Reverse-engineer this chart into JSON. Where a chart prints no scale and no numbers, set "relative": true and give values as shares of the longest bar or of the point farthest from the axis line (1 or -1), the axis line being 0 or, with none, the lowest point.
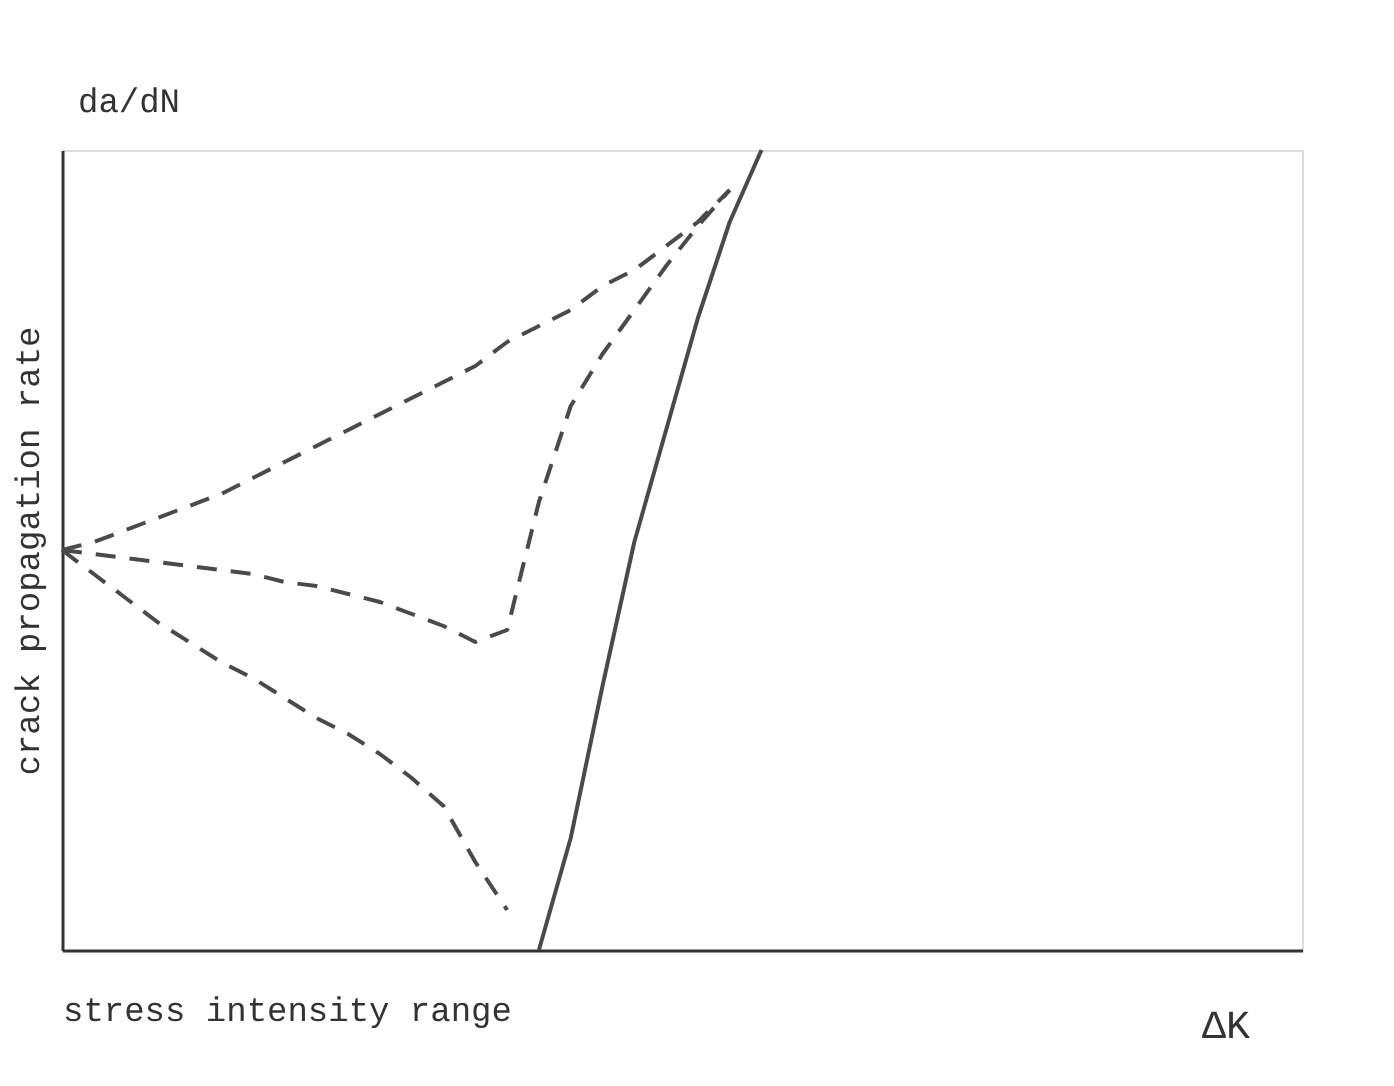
{
  "chart_data": {
    "type": "line",
    "relative": true,
    "xlabel": "stress intensity range",
    "ylabel": "crack propagation rate",
    "annotations": [
      "da/dN",
      "ΔK"
    ],
    "categories": [
      null,
      null,
      null,
      null,
      null,
      null,
      null,
      null,
      null,
      null,
      null,
      null,
      null,
      null,
      null,
      null,
      null,
      null,
      null,
      null,
      null,
      null,
      null,
      null,
      null,
      null,
      null,
      null,
      null,
      null,
      null,
      null,
      null,
      null,
      null,
      null,
      null,
      null,
      null,
      null
    ],
    "tick_labels": false,
    "grid": false,
    "marker": "none",
    "series": [
      {
        "color": "#4a4a4a",
        "line_style": "solid",
        "values": [
          null,
          null,
          null,
          null,
          null,
          null,
          null,
          null,
          null,
          null,
          null,
          null,
          null,
          null,
          null,
          0,
          0.14,
          0.33,
          0.51,
          0.65,
          0.79,
          0.91,
          1.0,
          null,
          null,
          null,
          null,
          null,
          null,
          null,
          null,
          null,
          null,
          null,
          null,
          null,
          null,
          null,
          null,
          null
        ]
      },
      {
        "color": "#4a4a4a",
        "line_style": "dashed",
        "values": [
          0.5,
          0.51,
          0.525,
          0.54,
          0.555,
          0.57,
          0.59,
          0.61,
          0.63,
          0.65,
          0.67,
          0.69,
          0.71,
          0.73,
          0.76,
          0.78,
          0.8,
          0.83,
          0.85,
          0.88,
          0.91,
          0.95,
          null,
          null,
          null,
          null,
          null,
          null,
          null,
          null,
          null,
          null,
          null,
          null,
          null,
          null,
          null,
          null,
          null,
          null
        ]
      },
      {
        "color": "#4a4a4a",
        "line_style": "dashed",
        "values": [
          0.5,
          0.495,
          0.49,
          0.485,
          0.48,
          0.475,
          0.47,
          0.46,
          0.455,
          0.445,
          0.435,
          0.42,
          0.405,
          0.385,
          0.4,
          0.56,
          0.68,
          0.745,
          0.8,
          0.855,
          0.905,
          0.95,
          null,
          null,
          null,
          null,
          null,
          null,
          null,
          null,
          null,
          null,
          null,
          null,
          null,
          null,
          null,
          null,
          null,
          null
        ]
      },
      {
        "color": "#4a4a4a",
        "line_style": "dashed",
        "values": [
          0.5,
          0.47,
          0.44,
          0.41,
          0.385,
          0.36,
          0.34,
          0.315,
          0.29,
          0.27,
          0.245,
          0.215,
          0.18,
          0.11,
          0.05,
          null,
          null,
          null,
          null,
          null,
          null,
          null,
          null,
          null,
          null,
          null,
          null,
          null,
          null,
          null,
          null,
          null,
          null,
          null,
          null,
          null,
          null,
          null,
          null,
          null
        ]
      }
    ]
  }
}
